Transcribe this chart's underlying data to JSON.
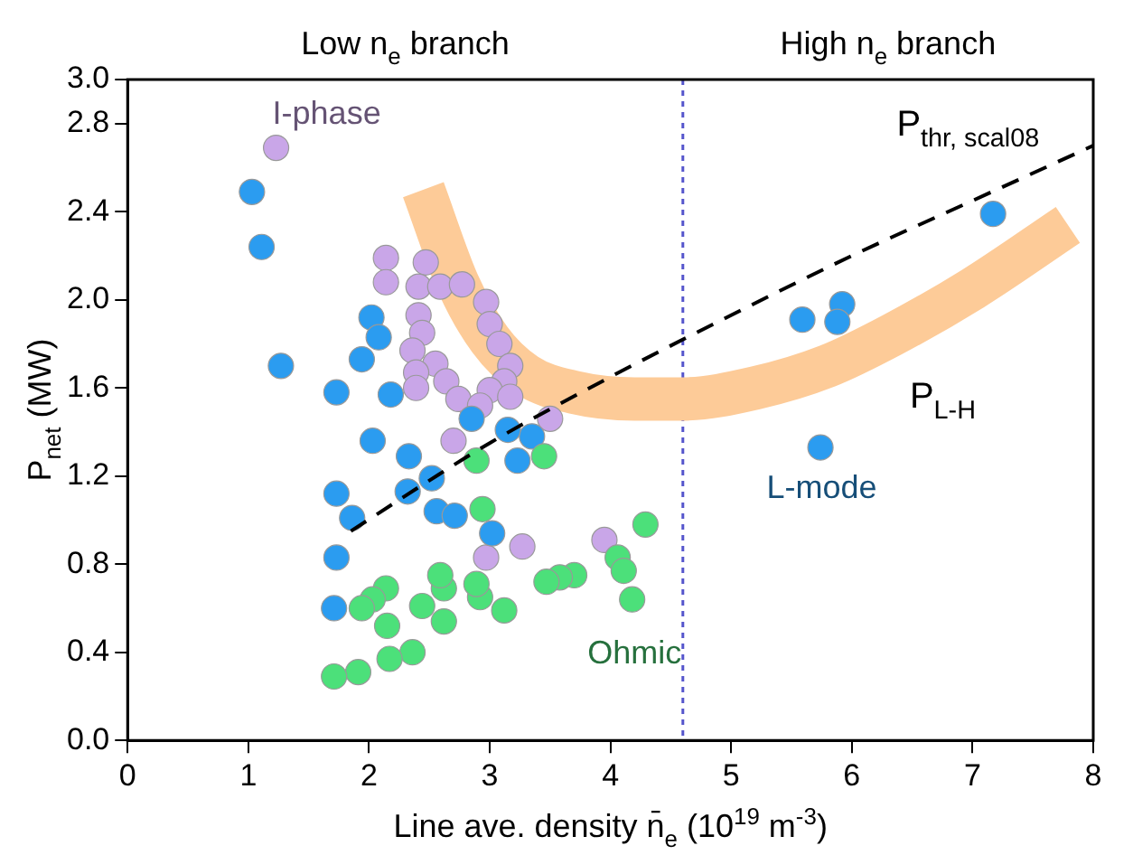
{
  "chart_data": {
    "type": "scatter",
    "xlabel": "Line ave. density n̄$_{e}$ (10$^{19}$ m$^{-3}$)",
    "ylabel": "P$_{net}$ (MW)",
    "annotations": [
      "Low n$_{e}$ branch",
      "High n$_{e}$ branch"
    ],
    "xlim": [
      0,
      8
    ],
    "xticks": [
      0,
      1,
      2,
      3,
      4,
      5,
      6,
      7,
      8
    ],
    "ylim": [
      0,
      3.0
    ],
    "yticks": [
      {
        "value": 0,
        "label": "0.0"
      },
      {
        "value": 0.4,
        "label": "0.4"
      },
      {
        "value": 0.8,
        "label": "0.8"
      },
      {
        "value": 1.2,
        "label": "1.2"
      },
      {
        "value": 1.6,
        "label": "1.6"
      },
      {
        "value": 2.0,
        "label": "2.0"
      },
      {
        "value": 2.4,
        "label": "2.4"
      },
      {
        "value": 2.8,
        "label": "2.8"
      },
      {
        "value": 3.0,
        "label": "3.0"
      }
    ],
    "grid": false,
    "legend": false,
    "marker": "circle",
    "ref_lines": [
      {
        "axis": "x",
        "value": 4.6,
        "color": "#5555cc",
        "line_style": "dotted"
      }
    ],
    "series": [
      {
        "name": "P$_{L-H}$",
        "type": "line",
        "color": "#fdcb98",
        "line_style": "solid",
        "marker": "none",
        "x": [
          2.45,
          2.74,
          3.0,
          3.3,
          3.7,
          4.2,
          4.6,
          5.2,
          5.8,
          6.33,
          7.0,
          7.79
        ],
        "values": [
          2.5,
          2.07,
          1.82,
          1.66,
          1.58,
          1.55,
          1.55,
          1.6,
          1.7,
          1.84,
          2.05,
          2.34
        ]
      },
      {
        "name": "Ohmic",
        "type": "scatter",
        "color": "#4ce07a",
        "x": [
          4.29,
          4.06,
          4.11,
          4.18,
          3.7,
          3.58,
          3.47,
          3.12,
          2.92,
          2.89,
          2.62,
          2.59,
          2.44,
          2.62,
          2.14,
          2.03,
          1.94,
          2.15,
          2.36,
          2.17,
          1.91,
          1.71,
          2.94,
          2.89,
          3.45
        ],
        "values": [
          0.98,
          0.83,
          0.77,
          0.64,
          0.75,
          0.74,
          0.72,
          0.59,
          0.65,
          0.71,
          0.69,
          0.75,
          0.61,
          0.54,
          0.69,
          0.64,
          0.6,
          0.52,
          0.4,
          0.37,
          0.31,
          0.29,
          1.05,
          1.27,
          1.29
        ]
      },
      {
        "name": "L-mode",
        "type": "scatter",
        "color": "#2b9cf0",
        "x": [
          1.03,
          1.11,
          1.27,
          1.73,
          2.18,
          2.02,
          2.08,
          1.94,
          2.03,
          2.33,
          2.52,
          1.73,
          1.86,
          2.32,
          2.56,
          2.71,
          3.02,
          1.73,
          3.23,
          3.35,
          3.15,
          2.85,
          1.71,
          7.17,
          5.59,
          5.92,
          5.88,
          5.74
        ],
        "values": [
          2.49,
          2.24,
          1.7,
          1.58,
          1.57,
          1.92,
          1.83,
          1.73,
          1.36,
          1.29,
          1.19,
          1.12,
          1.01,
          1.13,
          1.04,
          1.02,
          0.94,
          0.83,
          1.27,
          1.38,
          1.41,
          1.46,
          0.6,
          2.39,
          1.91,
          1.98,
          1.9,
          1.33
        ]
      },
      {
        "name": "I-phase",
        "type": "scatter",
        "color": "#c9a6e8",
        "x": [
          1.23,
          2.14,
          2.47,
          2.14,
          2.41,
          2.59,
          2.77,
          2.97,
          2.41,
          2.44,
          3.0,
          3.08,
          2.36,
          2.55,
          3.17,
          2.39,
          2.64,
          2.39,
          3.12,
          2.74,
          3.0,
          2.92,
          3.5,
          2.7,
          3.27,
          2.97,
          3.95,
          3.17
        ],
        "values": [
          2.69,
          2.19,
          2.17,
          2.08,
          2.06,
          2.06,
          2.07,
          1.99,
          1.93,
          1.85,
          1.89,
          1.8,
          1.77,
          1.71,
          1.7,
          1.67,
          1.63,
          1.6,
          1.63,
          1.55,
          1.59,
          1.52,
          1.46,
          1.36,
          0.88,
          0.83,
          0.91,
          1.56
        ]
      },
      {
        "name": "P$_{thr, scal08}$",
        "type": "line",
        "color": "#000000",
        "line_style": "dashed",
        "marker": "none",
        "x": [
          1.85,
          2.5,
          3,
          4,
          5,
          6,
          7,
          8
        ],
        "values": [
          0.95,
          1.18,
          1.35,
          1.65,
          1.93,
          2.2,
          2.45,
          2.7
        ]
      }
    ]
  }
}
